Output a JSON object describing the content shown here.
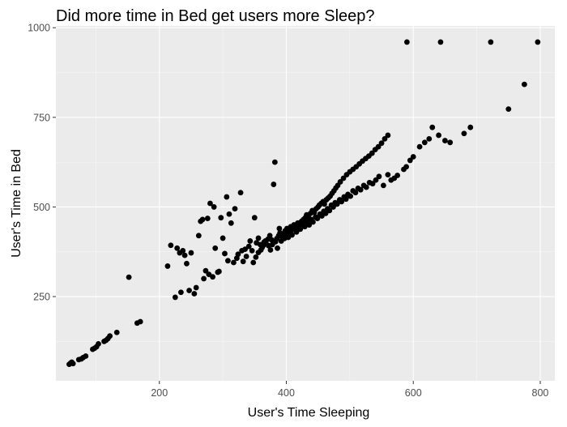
{
  "chart_data": {
    "type": "scatter",
    "title": "Did more time in Bed get users more Sleep?",
    "xlabel": "User's Time Sleeping",
    "ylabel": "User's Time in Bed",
    "xlim": [
      37,
      823
    ],
    "ylim": [
      15,
      1005
    ],
    "x_ticks": [
      200,
      400,
      600,
      800
    ],
    "y_ticks": [
      250,
      500,
      750,
      1000
    ],
    "grid": true,
    "point_color": "#000000",
    "panel_color": "#ebebeb",
    "points": [
      [
        58,
        61
      ],
      [
        60,
        64
      ],
      [
        62,
        67
      ],
      [
        64,
        63
      ],
      [
        73,
        74
      ],
      [
        77,
        76
      ],
      [
        80,
        80
      ],
      [
        84,
        84
      ],
      [
        95,
        103
      ],
      [
        98,
        106
      ],
      [
        101,
        110
      ],
      [
        104,
        118
      ],
      [
        113,
        125
      ],
      [
        116,
        128
      ],
      [
        119,
        133
      ],
      [
        122,
        140
      ],
      [
        133,
        150
      ],
      [
        152,
        304
      ],
      [
        165,
        176
      ],
      [
        170,
        180
      ],
      [
        213,
        335
      ],
      [
        218,
        393
      ],
      [
        225,
        248
      ],
      [
        228,
        385
      ],
      [
        232,
        372
      ],
      [
        234,
        262
      ],
      [
        237,
        378
      ],
      [
        240,
        365
      ],
      [
        243,
        342
      ],
      [
        247,
        267
      ],
      [
        250,
        372
      ],
      [
        255,
        258
      ],
      [
        258,
        275
      ],
      [
        262,
        420
      ],
      [
        265,
        460
      ],
      [
        268,
        465
      ],
      [
        270,
        300
      ],
      [
        273,
        322
      ],
      [
        276,
        468
      ],
      [
        278,
        312
      ],
      [
        280,
        510
      ],
      [
        284,
        305
      ],
      [
        286,
        500
      ],
      [
        288,
        385
      ],
      [
        292,
        318
      ],
      [
        294,
        320
      ],
      [
        297,
        470
      ],
      [
        300,
        413
      ],
      [
        303,
        370
      ],
      [
        306,
        528
      ],
      [
        308,
        350
      ],
      [
        310,
        480
      ],
      [
        313,
        455
      ],
      [
        317,
        345
      ],
      [
        319,
        495
      ],
      [
        322,
        357
      ],
      [
        324,
        368
      ],
      [
        328,
        540
      ],
      [
        330,
        378
      ],
      [
        332,
        348
      ],
      [
        335,
        382
      ],
      [
        337,
        362
      ],
      [
        341,
        390
      ],
      [
        343,
        405
      ],
      [
        346,
        378
      ],
      [
        350,
        470
      ],
      [
        353,
        400
      ],
      [
        356,
        413
      ],
      [
        359,
        395
      ],
      [
        362,
        387
      ],
      [
        365,
        402
      ],
      [
        368,
        398
      ],
      [
        371,
        410
      ],
      [
        374,
        420
      ],
      [
        377,
        408
      ],
      [
        380,
        563
      ],
      [
        382,
        625
      ],
      [
        385,
        412
      ],
      [
        388,
        420
      ],
      [
        390,
        428
      ],
      [
        393,
        418
      ],
      [
        396,
        425
      ],
      [
        398,
        433
      ],
      [
        401,
        440
      ],
      [
        404,
        428
      ],
      [
        407,
        445
      ],
      [
        410,
        437
      ],
      [
        412,
        450
      ],
      [
        415,
        443
      ],
      [
        418,
        455
      ],
      [
        421,
        448
      ],
      [
        424,
        460
      ],
      [
        427,
        465
      ],
      [
        430,
        470
      ],
      [
        432,
        478
      ],
      [
        435,
        470
      ],
      [
        438,
        482
      ],
      [
        441,
        490
      ],
      [
        444,
        485
      ],
      [
        447,
        495
      ],
      [
        450,
        500
      ],
      [
        452,
        505
      ],
      [
        455,
        510
      ],
      [
        458,
        515
      ],
      [
        460,
        508
      ],
      [
        463,
        520
      ],
      [
        466,
        525
      ],
      [
        469,
        530
      ],
      [
        472,
        538
      ],
      [
        475,
        545
      ],
      [
        478,
        553
      ],
      [
        481,
        560
      ],
      [
        485,
        570
      ],
      [
        490,
        580
      ],
      [
        495,
        590
      ],
      [
        500,
        598
      ],
      [
        505,
        605
      ],
      [
        510,
        612
      ],
      [
        515,
        620
      ],
      [
        520,
        628
      ],
      [
        525,
        635
      ],
      [
        530,
        642
      ],
      [
        535,
        650
      ],
      [
        540,
        660
      ],
      [
        545,
        668
      ],
      [
        550,
        678
      ],
      [
        555,
        690
      ],
      [
        560,
        700
      ],
      [
        348,
        345
      ],
      [
        352,
        360
      ],
      [
        356,
        373
      ],
      [
        360,
        380
      ],
      [
        364,
        393
      ],
      [
        367,
        405
      ],
      [
        372,
        392
      ],
      [
        375,
        380
      ],
      [
        378,
        395
      ],
      [
        383,
        403
      ],
      [
        386,
        385
      ],
      [
        389,
        440
      ],
      [
        392,
        405
      ],
      [
        397,
        412
      ],
      [
        400,
        425
      ],
      [
        403,
        415
      ],
      [
        406,
        432
      ],
      [
        409,
        422
      ],
      [
        413,
        438
      ],
      [
        416,
        430
      ],
      [
        419,
        445
      ],
      [
        422,
        438
      ],
      [
        426,
        452
      ],
      [
        429,
        445
      ],
      [
        433,
        458
      ],
      [
        436,
        450
      ],
      [
        439,
        465
      ],
      [
        442,
        458
      ],
      [
        446,
        472
      ],
      [
        449,
        468
      ],
      [
        453,
        480
      ],
      [
        456,
        475
      ],
      [
        459,
        488
      ],
      [
        462,
        482
      ],
      [
        465,
        495
      ],
      [
        468,
        490
      ],
      [
        471,
        505
      ],
      [
        474,
        500
      ],
      [
        477,
        512
      ],
      [
        480,
        508
      ],
      [
        484,
        520
      ],
      [
        487,
        515
      ],
      [
        491,
        528
      ],
      [
        494,
        522
      ],
      [
        497,
        535
      ],
      [
        501,
        530
      ],
      [
        505,
        545
      ],
      [
        509,
        540
      ],
      [
        513,
        552
      ],
      [
        517,
        548
      ],
      [
        522,
        560
      ],
      [
        526,
        555
      ],
      [
        531,
        568
      ],
      [
        536,
        565
      ],
      [
        541,
        575
      ],
      [
        546,
        585
      ],
      [
        590,
        960
      ],
      [
        643,
        960
      ],
      [
        722,
        960
      ],
      [
        796,
        960
      ],
      [
        775,
        842
      ],
      [
        750,
        773
      ],
      [
        690,
        722
      ],
      [
        680,
        705
      ],
      [
        658,
        680
      ],
      [
        650,
        685
      ],
      [
        640,
        700
      ],
      [
        630,
        722
      ],
      [
        625,
        690
      ],
      [
        618,
        680
      ],
      [
        610,
        668
      ],
      [
        600,
        640
      ],
      [
        595,
        630
      ],
      [
        589,
        612
      ],
      [
        585,
        605
      ],
      [
        575,
        588
      ],
      [
        565,
        575
      ],
      [
        560,
        590
      ],
      [
        570,
        580
      ],
      [
        553,
        560
      ]
    ]
  }
}
